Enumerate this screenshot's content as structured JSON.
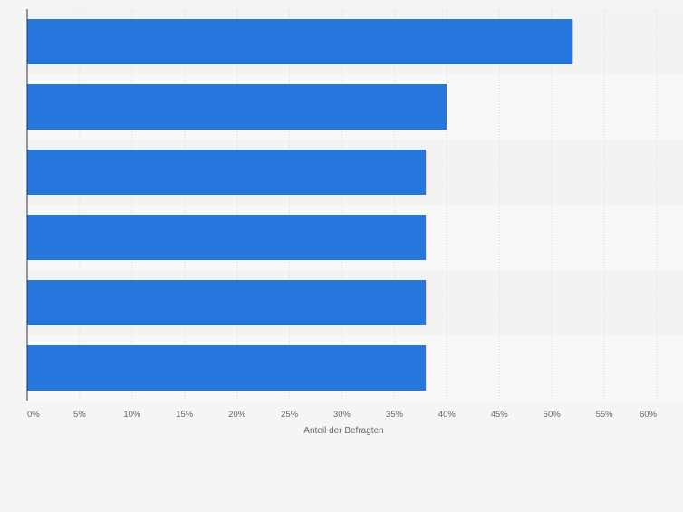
{
  "chart_data": {
    "type": "bar",
    "orientation": "horizontal",
    "categories": [
      "",
      "",
      "",
      "",
      "",
      ""
    ],
    "values": [
      52,
      40,
      38,
      38,
      38,
      38
    ],
    "xlabel": "Anteil der Befragten",
    "ylabel": "",
    "xlim": [
      0,
      60
    ],
    "xticks": [
      0,
      5,
      10,
      15,
      20,
      25,
      30,
      35,
      40,
      45,
      50,
      55,
      60
    ],
    "tick_suffix": "%",
    "grid": true,
    "bar_color": "#2776dd"
  }
}
